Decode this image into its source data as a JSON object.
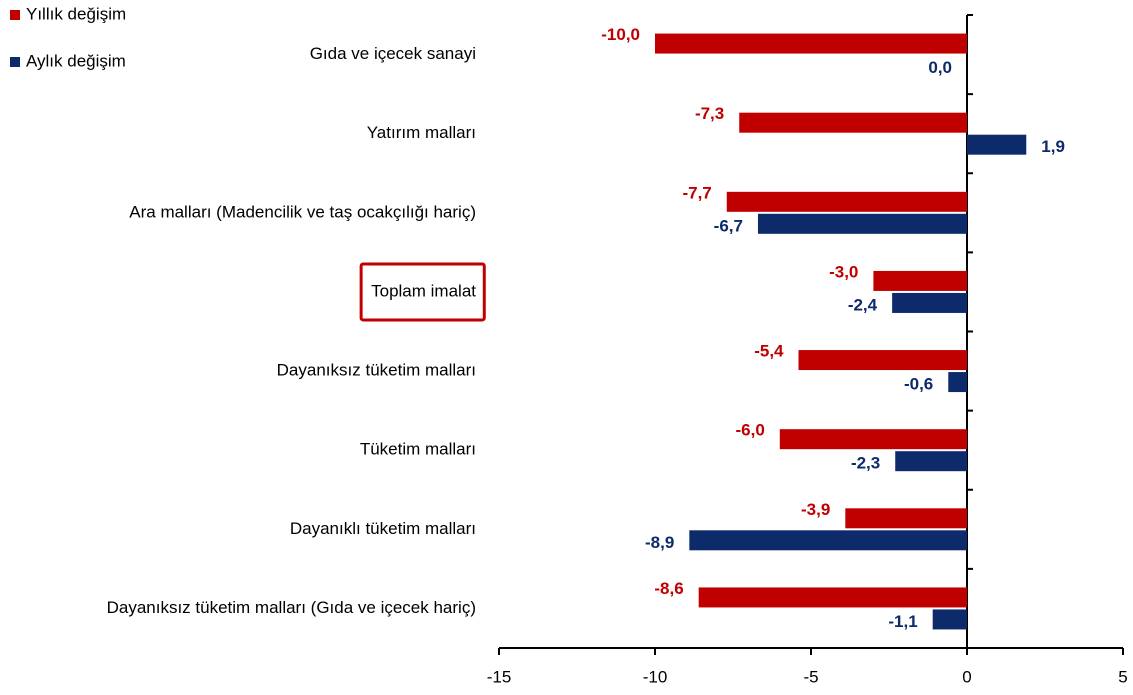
{
  "chart_data": {
    "type": "bar",
    "orientation": "horizontal",
    "categories": [
      "Gıda ve içecek sanayi",
      "Yatırım malları",
      "Ara malları (Madencilik ve taş ocakçılığı hariç)",
      "Toplam imalat",
      "Dayanıksız tüketim malları",
      "Tüketim malları",
      "Dayanıklı tüketim malları",
      "Dayanıksız tüketim malları (Gıda ve içecek hariç)"
    ],
    "series": [
      {
        "name": "Yıllık değişim",
        "color": "#c00000",
        "values": [
          -10.0,
          -7.3,
          -7.7,
          -3.0,
          -5.4,
          -6.0,
          -3.9,
          -8.6
        ],
        "value_labels": [
          "-10,0",
          "-7,3",
          "-7,7",
          "-3,0",
          "-5,4",
          "-6,0",
          "-3,9",
          "-8,6"
        ]
      },
      {
        "name": "Aylık değişim",
        "color": "#0d2a6b",
        "values": [
          0.0,
          1.9,
          -6.7,
          -2.4,
          -0.6,
          -2.3,
          -8.9,
          -1.1
        ],
        "value_labels": [
          "0,0",
          "1,9",
          "-6,7",
          "-2,4",
          "-0,6",
          "-2,3",
          "-8,9",
          "-1,1"
        ]
      }
    ],
    "xlim": [
      -15,
      5
    ],
    "xticks": [
      -15,
      -10,
      -5,
      0,
      5
    ]
  }
}
